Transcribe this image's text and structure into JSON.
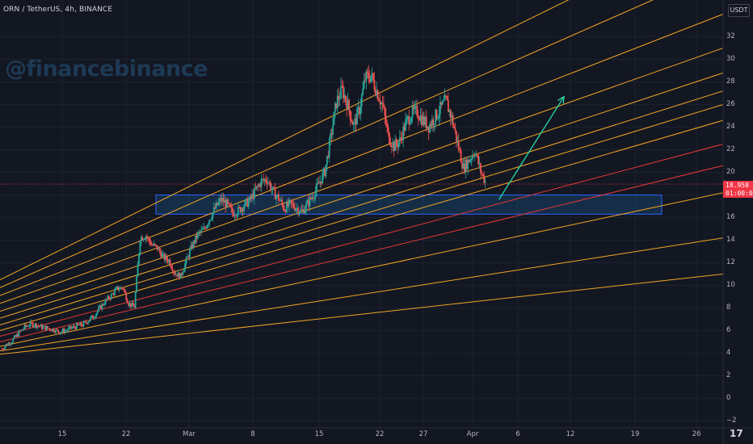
{
  "header": {
    "symbol": "ORN / TetherUS",
    "timeframe": "4h",
    "exchange": "BINANCE"
  },
  "watermark": "@financebinance",
  "currency_button": "USDT",
  "last_price": {
    "value": "18.958",
    "countdown": "01:00:08",
    "color": "#f23645"
  },
  "chart_data": {
    "type": "candlestick",
    "ylim": [
      -2,
      33
    ],
    "y_ticks": [
      "32",
      "30",
      "28",
      "26",
      "24",
      "22",
      "20",
      "18",
      "16",
      "14",
      "12",
      "10",
      "8",
      "6",
      "4",
      "2",
      "0",
      "−2"
    ],
    "x_ticks": [
      "15",
      "22",
      "Mar",
      "8",
      "15",
      "22",
      "27",
      "Apr",
      "6",
      "12",
      "19",
      "26"
    ],
    "series_close": [
      4.4,
      4.8,
      5.2,
      5.8,
      6.3,
      6.6,
      6.5,
      6.3,
      6.2,
      6.1,
      5.9,
      6.0,
      6.2,
      6.4,
      6.5,
      6.9,
      7.3,
      8.0,
      8.6,
      9.1,
      9.7,
      9.8,
      8.4,
      8.1,
      14.2,
      14.4,
      13.6,
      13.3,
      12.5,
      12.2,
      11.1,
      10.8,
      12.2,
      13.5,
      14.5,
      14.9,
      15.9,
      16.8,
      17.6,
      17.2,
      16.4,
      16.6,
      17.1,
      17.5,
      18.4,
      19.2,
      19.4,
      18.3,
      17.7,
      16.8,
      17.2,
      16.9,
      16.5,
      17.2,
      18.0,
      19.0,
      20.1,
      23.0,
      26.2,
      27.3,
      25.9,
      24.1,
      25.6,
      28.3,
      28.6,
      27.2,
      25.9,
      23.2,
      22.3,
      22.8,
      24.3,
      25.2,
      25.4,
      24.6,
      24.1,
      24.8,
      25.6,
      26.3,
      24.8,
      22.6,
      20.4,
      21.1,
      21.9,
      20.1,
      18.96
    ],
    "fan_lines": [
      {
        "color": "orange",
        "from": [
          0,
          10.5
        ],
        "to": [
          1,
          42
        ]
      },
      {
        "color": "orange",
        "from": [
          0,
          9.8
        ],
        "to": [
          1,
          38
        ]
      },
      {
        "color": "orange",
        "from": [
          0,
          9.1
        ],
        "to": [
          1,
          34
        ]
      },
      {
        "color": "orange",
        "from": [
          0,
          8.4
        ],
        "to": [
          1,
          31
        ]
      },
      {
        "color": "orange",
        "from": [
          0,
          7.7
        ],
        "to": [
          1,
          28.8
        ]
      },
      {
        "color": "orange",
        "from": [
          0,
          7.1
        ],
        "to": [
          1,
          27.2
        ]
      },
      {
        "color": "orange",
        "from": [
          0,
          6.5
        ],
        "to": [
          1,
          26.0
        ]
      },
      {
        "color": "orange",
        "from": [
          0,
          6.0
        ],
        "to": [
          1,
          24.6
        ]
      },
      {
        "color": "red",
        "from": [
          0,
          5.5
        ],
        "to": [
          1,
          22.5
        ]
      },
      {
        "color": "red",
        "from": [
          0,
          5.0
        ],
        "to": [
          1,
          20.6
        ]
      },
      {
        "color": "orange",
        "from": [
          0,
          4.6
        ],
        "to": [
          1,
          18.2
        ]
      },
      {
        "color": "orange",
        "from": [
          0,
          4.2
        ],
        "to": [
          1,
          14.2
        ]
      },
      {
        "color": "orange",
        "from": [
          0,
          3.9
        ],
        "to": [
          1,
          11.0
        ]
      }
    ],
    "support_zone": {
      "y_low": 16.3,
      "y_high": 18.0
    },
    "projection_arrow": {
      "from": [
        0.69,
        17.6
      ],
      "to": [
        0.78,
        26.7
      ]
    }
  },
  "logo": "17"
}
